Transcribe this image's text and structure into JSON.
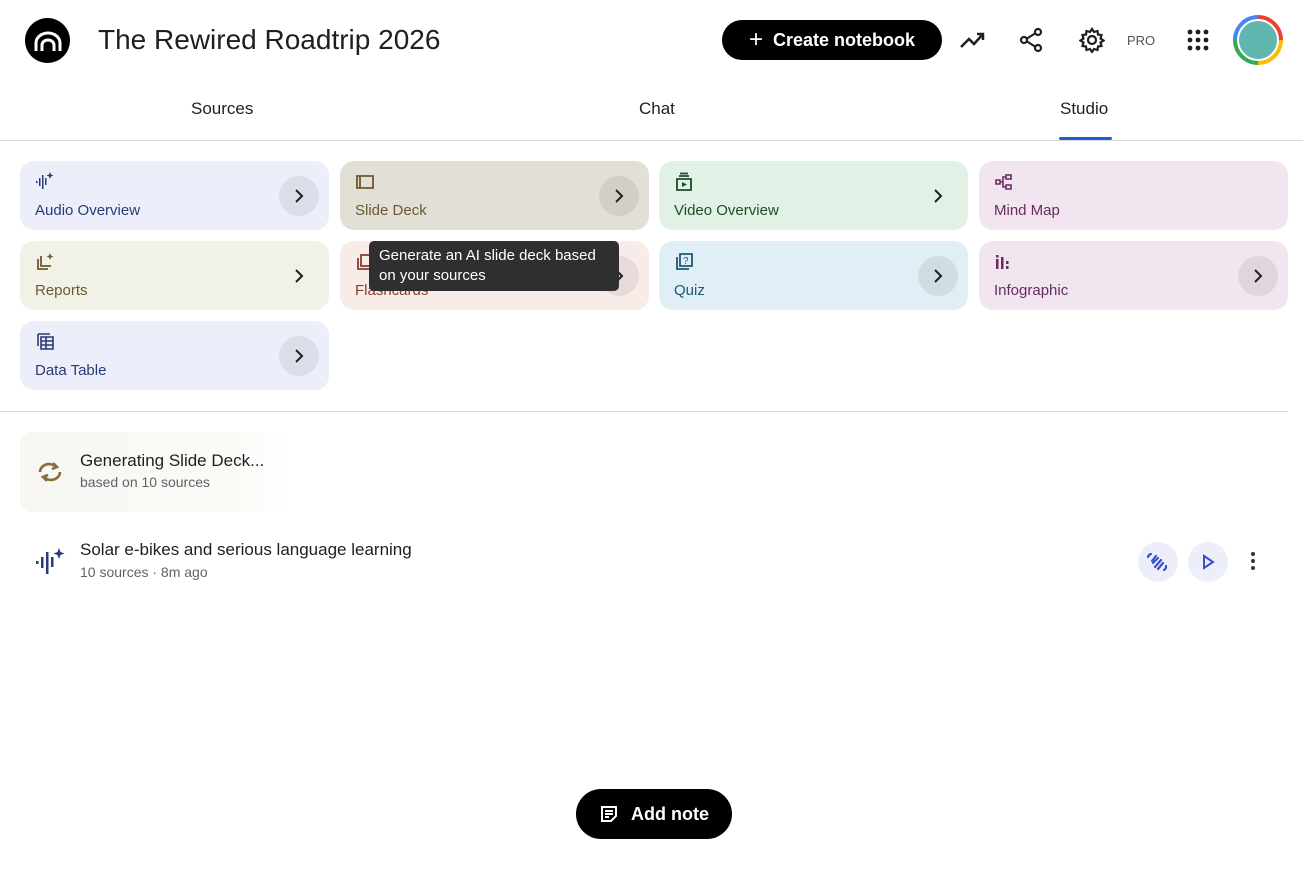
{
  "header": {
    "title": "The Rewired Roadtrip 2026",
    "create_label": "Create notebook",
    "pro_label": "PRO"
  },
  "tabs": [
    {
      "label": "Sources"
    },
    {
      "label": "Chat"
    },
    {
      "label": "Studio",
      "active": true
    }
  ],
  "studio_cards": [
    {
      "label": "Audio Overview",
      "icon": "audio-waveform-icon",
      "bg": "#eceffa",
      "fg": "#2b3a78"
    },
    {
      "label": "Slide Deck",
      "icon": "slides-icon",
      "bg": "#e1dfd6",
      "fg": "#6b5a2e"
    },
    {
      "label": "Video Overview",
      "icon": "video-icon",
      "bg": "#e2f1e5",
      "fg": "#1e4d2b"
    },
    {
      "label": "Mind Map",
      "icon": "mind-map-icon",
      "bg": "#f1e6ef",
      "fg": "#6a2a63"
    },
    {
      "label": "Reports",
      "icon": "reports-icon",
      "bg": "#f2f1e8",
      "fg": "#6b5a2e"
    },
    {
      "label": "Flashcards",
      "icon": "flashcards-icon",
      "bg": "#f8ece9",
      "fg": "#8b3a2e"
    },
    {
      "label": "Quiz",
      "icon": "quiz-icon",
      "bg": "#dfeff5",
      "fg": "#1d5a73"
    },
    {
      "label": "Infographic",
      "icon": "infographic-icon",
      "bg": "#f1e6ef",
      "fg": "#6a2a63"
    },
    {
      "label": "Data Table",
      "icon": "table-icon",
      "bg": "#eceffa",
      "fg": "#2b3a78"
    }
  ],
  "tooltip": "Generate an AI slide deck based on your sources",
  "generating": {
    "title": "Generating Slide Deck...",
    "subtitle": "based on 10 sources"
  },
  "artifact": {
    "title": "Solar e-bikes and serious language learning",
    "subtitle": "10 sources · 8m ago"
  },
  "add_note_label": "Add note",
  "accent": "#1a5fd0"
}
